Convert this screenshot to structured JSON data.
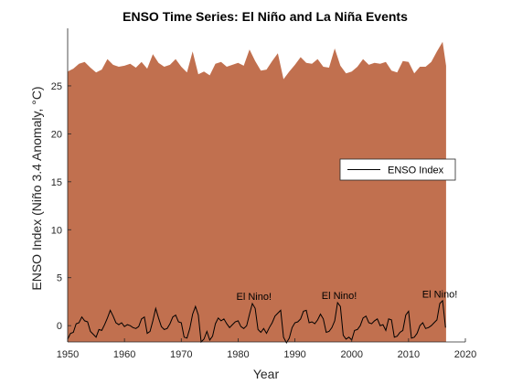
{
  "chart_data": {
    "type": "area",
    "title": "ENSO Time Series: El Niño and La Niña Events",
    "xlabel": "Year",
    "ylabel": "ENSO Index (Niño 3.4 Anomaly, °C)",
    "xlim": [
      1950,
      2020
    ],
    "ylim": [
      -1.7,
      31
    ],
    "xticks": [
      1950,
      1960,
      1970,
      1980,
      1990,
      2000,
      2010,
      2020
    ],
    "yticks": [
      0,
      5,
      10,
      15,
      20,
      25
    ],
    "grid": false,
    "legend": {
      "position": "right",
      "entries": [
        "ENSO Index"
      ]
    },
    "series": [
      {
        "name": "",
        "kind": "filled-area",
        "color": "#c1704f",
        "x": [
          1950.0,
          1951.0,
          1952.0,
          1953.0,
          1954.0,
          1955.0,
          1956.0,
          1957.0,
          1958.0,
          1959.0,
          1960.0,
          1961.0,
          1962.0,
          1963.0,
          1964.0,
          1965.0,
          1966.0,
          1967.0,
          1968.0,
          1969.0,
          1970.0,
          1971.0,
          1972.0,
          1973.0,
          1974.0,
          1975.0,
          1976.0,
          1977.0,
          1978.0,
          1979.0,
          1980.0,
          1981.0,
          1982.0,
          1983.0,
          1984.0,
          1985.0,
          1986.0,
          1987.0,
          1988.0,
          1989.0,
          1990.0,
          1991.0,
          1992.0,
          1993.0,
          1994.0,
          1995.0,
          1996.0,
          1997.0,
          1998.0,
          1999.0,
          2000.0,
          2001.0,
          2002.0,
          2003.0,
          2004.0,
          2005.0,
          2006.0,
          2007.0,
          2008.0,
          2009.0,
          2010.0,
          2011.0,
          2012.0,
          2013.0,
          2014.0,
          2015.0,
          2016.0,
          2016.6
        ],
        "y": [
          26.5,
          26.8,
          27.3,
          27.5,
          26.9,
          26.4,
          26.7,
          27.8,
          27.2,
          27.0,
          27.1,
          27.3,
          26.9,
          27.5,
          26.8,
          28.3,
          27.4,
          27.0,
          27.2,
          27.8,
          27.0,
          26.4,
          28.6,
          26.2,
          26.5,
          26.1,
          27.3,
          27.5,
          27.0,
          27.2,
          27.4,
          27.1,
          28.8,
          27.6,
          26.6,
          26.7,
          27.6,
          28.4,
          25.7,
          26.5,
          27.2,
          28.0,
          27.4,
          27.3,
          27.8,
          27.0,
          26.9,
          28.9,
          27.1,
          26.3,
          26.5,
          27.0,
          27.8,
          27.2,
          27.4,
          27.3,
          27.5,
          26.6,
          26.4,
          27.6,
          27.5,
          26.3,
          27.0,
          27.0,
          27.5,
          28.6,
          29.6,
          27.1
        ]
      },
      {
        "name": "ENSO Index",
        "kind": "line",
        "color": "#000000",
        "x": [
          1950.0,
          1950.5,
          1951.0,
          1951.5,
          1952.0,
          1952.5,
          1953.0,
          1953.5,
          1954.0,
          1954.5,
          1955.0,
          1955.5,
          1956.0,
          1956.5,
          1957.0,
          1957.5,
          1958.0,
          1958.5,
          1959.0,
          1959.5,
          1960.0,
          1960.5,
          1961.0,
          1961.5,
          1962.0,
          1962.5,
          1963.0,
          1963.5,
          1964.0,
          1964.5,
          1965.0,
          1965.5,
          1966.0,
          1966.5,
          1967.0,
          1967.5,
          1968.0,
          1968.5,
          1969.0,
          1969.5,
          1970.0,
          1970.5,
          1971.0,
          1971.5,
          1972.0,
          1972.5,
          1973.0,
          1973.5,
          1974.0,
          1974.5,
          1975.0,
          1975.5,
          1976.0,
          1976.5,
          1977.0,
          1977.5,
          1978.0,
          1978.5,
          1979.0,
          1979.5,
          1980.0,
          1980.5,
          1981.0,
          1981.5,
          1982.0,
          1982.5,
          1983.0,
          1983.5,
          1984.0,
          1984.5,
          1985.0,
          1985.5,
          1986.0,
          1986.5,
          1987.0,
          1987.5,
          1988.0,
          1988.5,
          1989.0,
          1989.5,
          1990.0,
          1990.5,
          1991.0,
          1991.5,
          1992.0,
          1992.5,
          1993.0,
          1993.5,
          1994.0,
          1994.5,
          1995.0,
          1995.5,
          1996.0,
          1996.5,
          1997.0,
          1997.5,
          1998.0,
          1998.5,
          1999.0,
          1999.5,
          2000.0,
          2000.5,
          2001.0,
          2001.5,
          2002.0,
          2002.5,
          2003.0,
          2003.5,
          2004.0,
          2004.5,
          2005.0,
          2005.5,
          2006.0,
          2006.5,
          2007.0,
          2007.5,
          2008.0,
          2008.5,
          2009.0,
          2009.5,
          2010.0,
          2010.5,
          2011.0,
          2011.5,
          2012.0,
          2012.5,
          2013.0,
          2013.5,
          2014.0,
          2014.5,
          2015.0,
          2015.5,
          2016.0,
          2016.5
        ],
        "y": [
          -1.4,
          -0.8,
          -0.7,
          0.2,
          0.3,
          0.9,
          0.5,
          0.4,
          -0.6,
          -0.9,
          -1.2,
          -0.4,
          -0.5,
          0.1,
          0.8,
          1.6,
          1.0,
          0.3,
          0.1,
          0.3,
          -0.1,
          0.1,
          0.0,
          -0.2,
          -0.3,
          -0.1,
          0.7,
          0.9,
          -0.8,
          -0.6,
          0.5,
          1.8,
          0.8,
          -0.1,
          -0.4,
          -0.3,
          0.2,
          0.9,
          1.1,
          0.4,
          0.3,
          -1.2,
          -1.3,
          -0.3,
          1.2,
          2.0,
          1.1,
          -1.7,
          -1.4,
          -0.6,
          -1.5,
          -1.1,
          0.2,
          0.8,
          0.5,
          0.7,
          0.2,
          -0.2,
          0.1,
          0.4,
          0.5,
          -0.1,
          -0.3,
          0.0,
          1.2,
          2.3,
          1.8,
          -0.4,
          -0.7,
          -0.3,
          -0.8,
          -0.2,
          0.3,
          1.0,
          1.3,
          1.6,
          -1.2,
          -1.8,
          -1.3,
          -0.2,
          0.3,
          0.4,
          0.7,
          1.5,
          1.6,
          0.3,
          0.4,
          0.2,
          0.6,
          1.2,
          0.7,
          -0.7,
          -0.6,
          -0.2,
          0.5,
          2.4,
          2.0,
          -1.0,
          -1.4,
          -1.2,
          -1.5,
          -0.5,
          -0.4,
          0.0,
          0.8,
          1.0,
          0.3,
          0.2,
          0.5,
          0.7,
          0.0,
          0.1,
          -0.5,
          0.7,
          0.6,
          -1.2,
          -1.1,
          -0.7,
          -0.5,
          1.1,
          1.5,
          -1.3,
          -1.2,
          -0.8,
          0.0,
          0.3,
          -0.3,
          -0.2,
          0.0,
          0.3,
          0.6,
          2.3,
          2.6,
          -0.2
        ]
      }
    ],
    "annotations": [
      {
        "text": "El Nino!",
        "x": 1982.8,
        "y": 2.7
      },
      {
        "text": "El Nino!",
        "x": 1997.8,
        "y": 2.8
      },
      {
        "text": "El Nino!",
        "x": 2015.5,
        "y": 2.9
      }
    ]
  }
}
